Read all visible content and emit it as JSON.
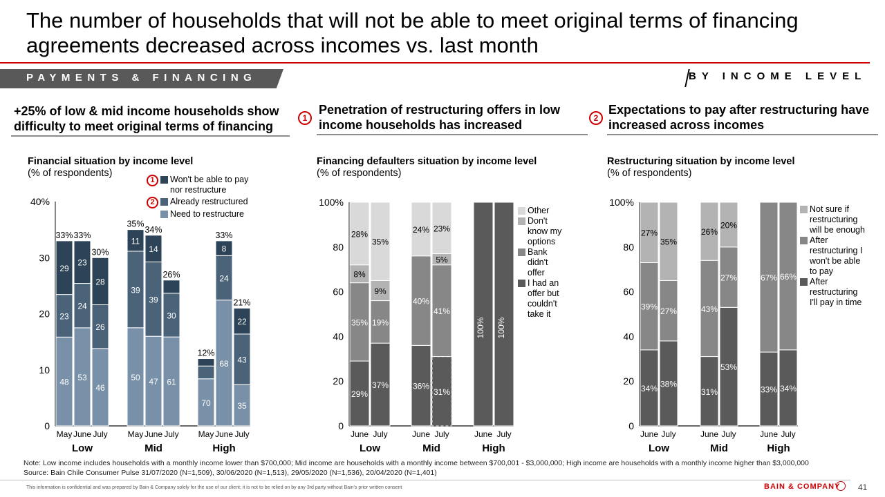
{
  "title": "The number of households that will not be able to meet original terms of financing agreements decreased across incomes vs. last month",
  "section": {
    "label": "PAYMENTS & FINANCING",
    "right_label": "BY INCOME LEVEL"
  },
  "panels": [
    {
      "headline": "+25% of low & mid income households show difficulty to meet original terms of financing",
      "marker": ""
    },
    {
      "headline": "Penetration of restructuring offers in low income households has increased",
      "marker": "1"
    },
    {
      "headline": "Expectations to pay after restructuring have increased across incomes",
      "marker": "2"
    }
  ],
  "colors": {
    "accent": "#cc0000",
    "c1_wont_pay": "#2d4458",
    "c1_restructured": "#4a6379",
    "c1_need": "#7890a8",
    "c2_other": "#d9d9d9",
    "c2_dont_know": "#b3b3b3",
    "c2_bank": "#878787",
    "c2_had_offer": "#5a5a5a",
    "c3_not_sure": "#b3b3b3",
    "c3_wont_pay": "#878787",
    "c3_pay": "#5a5a5a"
  },
  "chart_data": [
    {
      "type": "bar",
      "stacked": true,
      "title": "Financial situation by income level",
      "subtitle": "(% of respondents)",
      "ylim": [
        0,
        40
      ],
      "yticks": [
        "0",
        "10",
        "20",
        "30",
        "40%"
      ],
      "groups": [
        "Low",
        "Mid",
        "High"
      ],
      "categories": [
        "May",
        "June",
        "July"
      ],
      "legend": [
        {
          "name": "Won't be able to pay nor restructure",
          "marker": "1"
        },
        {
          "name": "Already restructured",
          "marker": "2"
        },
        {
          "name": "Need to restructure",
          "marker": ""
        }
      ],
      "bars": [
        {
          "group": "Low",
          "period": "May",
          "total": 33,
          "total_label": "33%",
          "share_of_total": {
            "need": 48,
            "restructured": 23,
            "wont_pay": 29
          },
          "labels": [
            "48",
            "23",
            "29"
          ]
        },
        {
          "group": "Low",
          "period": "June",
          "total": 33,
          "total_label": "33%",
          "share_of_total": {
            "need": 53,
            "restructured": 24,
            "wont_pay": 23
          },
          "labels": [
            "53",
            "24",
            "23"
          ]
        },
        {
          "group": "Low",
          "period": "July",
          "total": 30,
          "total_label": "30%",
          "share_of_total": {
            "need": 46,
            "restructured": 26,
            "wont_pay": 28
          },
          "labels": [
            "46",
            "26",
            "28"
          ]
        },
        {
          "group": "Mid",
          "period": "May",
          "total": 35,
          "total_label": "35%",
          "share_of_total": {
            "need": 50,
            "restructured": 39,
            "wont_pay": 11
          },
          "labels": [
            "50",
            "39",
            "11"
          ]
        },
        {
          "group": "Mid",
          "period": "June",
          "total": 34,
          "total_label": "34%",
          "share_of_total": {
            "need": 47,
            "restructured": 39,
            "wont_pay": 14
          },
          "labels": [
            "47",
            "39",
            "14"
          ]
        },
        {
          "group": "Mid",
          "period": "July",
          "total": 26,
          "total_label": "26%",
          "share_of_total": {
            "need": 61,
            "restructured": 30,
            "wont_pay": 9
          },
          "labels": [
            "61",
            "30",
            ""
          ]
        },
        {
          "group": "High",
          "period": "May",
          "total": 12,
          "total_label": "12%",
          "share_of_total": {
            "need": 70,
            "restructured": 19,
            "wont_pay": 11
          },
          "labels": [
            "70",
            "",
            ""
          ]
        },
        {
          "group": "High",
          "period": "June",
          "total": 33,
          "total_label": "33%",
          "share_of_total": {
            "need": 68,
            "restructured": 24,
            "wont_pay": 8
          },
          "labels": [
            "68",
            "24",
            "8"
          ]
        },
        {
          "group": "High",
          "period": "July",
          "total": 21,
          "total_label": "21%",
          "share_of_total": {
            "need": 35,
            "restructured": 43,
            "wont_pay": 22
          },
          "labels": [
            "35",
            "43",
            "22"
          ]
        }
      ]
    },
    {
      "type": "bar",
      "stacked": true,
      "title": "Financing defaulters situation by income level",
      "subtitle": "(% of respondents)",
      "ylim": [
        0,
        100
      ],
      "yticks": [
        "0",
        "20",
        "40",
        "60",
        "80",
        "100%"
      ],
      "groups": [
        "Low",
        "Mid",
        "High"
      ],
      "categories": [
        "June",
        "July"
      ],
      "legend": [
        "Other",
        "Don't know my options",
        "Bank didn't offer",
        "I had an offer but couldn't take it"
      ],
      "bars": [
        {
          "group": "Low",
          "period": "June",
          "values": {
            "had_offer": 29,
            "bank": 35,
            "dont_know": 8,
            "other": 28
          },
          "labels": [
            "29%",
            "35%",
            "8%",
            "28%"
          ]
        },
        {
          "group": "Low",
          "period": "July",
          "values": {
            "had_offer": 37,
            "bank": 19,
            "dont_know": 9,
            "other": 35
          },
          "labels": [
            "37%",
            "19%",
            "9%",
            "35%"
          ]
        },
        {
          "group": "Mid",
          "period": "June",
          "values": {
            "had_offer": 36,
            "bank": 40,
            "dont_know": 0,
            "other": 24
          },
          "labels": [
            "36%",
            "40%",
            "",
            "24%"
          ]
        },
        {
          "group": "Mid",
          "period": "July",
          "values": {
            "had_offer": 31,
            "bank": 41,
            "dont_know": 5,
            "other": 23
          },
          "labels": [
            "31%",
            "41%",
            "5%",
            "23%"
          ],
          "highlight": "dashed"
        },
        {
          "group": "High",
          "period": "June",
          "values": {
            "had_offer": 100,
            "bank": 0,
            "dont_know": 0,
            "other": 0
          },
          "labels": [
            "100%",
            "",
            "",
            ""
          ]
        },
        {
          "group": "High",
          "period": "July",
          "values": {
            "had_offer": 100,
            "bank": 0,
            "dont_know": 0,
            "other": 0
          },
          "labels": [
            "100%",
            "",
            "",
            ""
          ]
        }
      ]
    },
    {
      "type": "bar",
      "stacked": true,
      "title": "Restructuring situation by income level",
      "subtitle": "(% of respondents)",
      "ylim": [
        0,
        100
      ],
      "yticks": [
        "0",
        "20",
        "40",
        "60",
        "80",
        "100%"
      ],
      "groups": [
        "Low",
        "Mid",
        "High"
      ],
      "categories": [
        "June",
        "July"
      ],
      "legend": [
        "Not sure if restructuring will be enough",
        "After restructuring I won't be able to pay",
        "After restructuring I'll pay in time"
      ],
      "bars": [
        {
          "group": "Low",
          "period": "June",
          "values": {
            "pay": 34,
            "wont_pay": 39,
            "not_sure": 27
          },
          "labels": [
            "34%",
            "39%",
            "27%"
          ]
        },
        {
          "group": "Low",
          "period": "July",
          "values": {
            "pay": 38,
            "wont_pay": 27,
            "not_sure": 35
          },
          "labels": [
            "38%",
            "27%",
            "35%"
          ]
        },
        {
          "group": "Mid",
          "period": "June",
          "values": {
            "pay": 31,
            "wont_pay": 43,
            "not_sure": 26
          },
          "labels": [
            "31%",
            "43%",
            "26%"
          ]
        },
        {
          "group": "Mid",
          "period": "July",
          "values": {
            "pay": 53,
            "wont_pay": 27,
            "not_sure": 20
          },
          "labels": [
            "53%",
            "27%",
            "20%"
          ]
        },
        {
          "group": "High",
          "period": "June",
          "values": {
            "pay": 33,
            "wont_pay": 67,
            "not_sure": 0
          },
          "labels": [
            "33%",
            "67%",
            ""
          ]
        },
        {
          "group": "High",
          "period": "July",
          "values": {
            "pay": 34,
            "wont_pay": 66,
            "not_sure": 0
          },
          "labels": [
            "34%",
            "66%",
            ""
          ]
        }
      ]
    }
  ],
  "footer": {
    "note": "Note: Low income includes households with a monthly income lower than $700,000; Mid income are households with a monthly income between $700,001 - $3,000,000; High income are households with a monthly income higher than $3,000,000",
    "source": "Source: Bain Chile Consumer Pulse 31/07/2020 (N=1,509), 30/06/2020 (N=1,513), 29/05/2020 (N=1,536), 20/04/2020 (N=1,401)",
    "confidential": "This information is confidential and was prepared by Bain & Company solely for the use of our client; it is not to be relied on by any 3rd party without Bain's prior written consent",
    "logo": "BAIN & COMPANY",
    "page": "41"
  }
}
